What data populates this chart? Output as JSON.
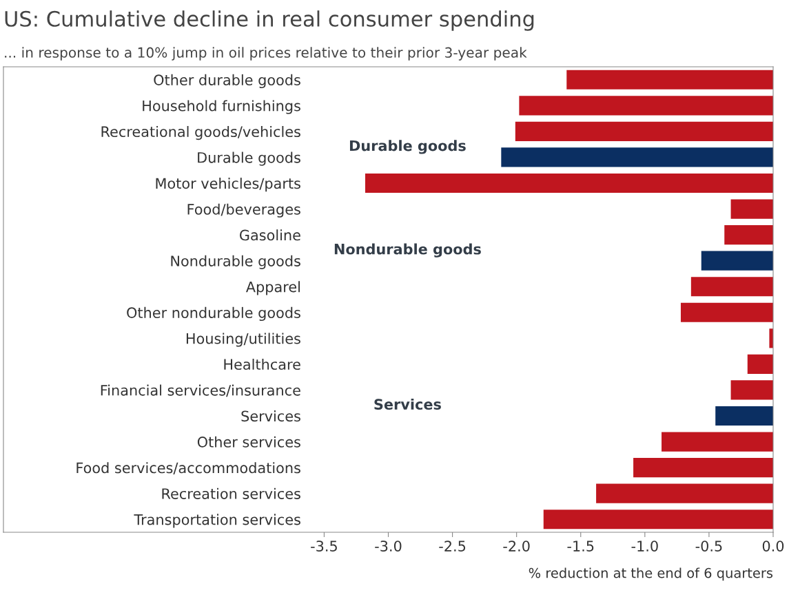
{
  "chart_data": {
    "type": "bar",
    "orientation": "horizontal",
    "title": "US: Cumulative decline in real consumer spending",
    "subtitle": "... in response to a 10% jump in oil prices relative to their prior 3-year peak",
    "xlabel": "% reduction at the end of 6 quarters",
    "categories": [
      "Other durable goods",
      "Household furnishings",
      "Recreational goods/vehicles",
      "Durable goods",
      "Motor vehicles/parts",
      "Food/beverages",
      "Gasoline",
      "Nondurable goods",
      "Apparel",
      "Other nondurable goods",
      "Housing/utilities",
      "Healthcare",
      "Financial services/insurance",
      "Services",
      "Other services",
      "Food services/accommodations",
      "Recreation services",
      "Transportation services"
    ],
    "values": [
      -1.61,
      -1.98,
      -2.01,
      -2.12,
      -3.18,
      -0.33,
      -0.38,
      -0.56,
      -0.64,
      -0.72,
      -0.03,
      -0.2,
      -0.33,
      -0.45,
      -0.87,
      -1.09,
      -1.38,
      -1.79
    ],
    "colors": [
      "#c0161f",
      "#c0161f",
      "#c0161f",
      "#0b2f62",
      "#c0161f",
      "#c0161f",
      "#c0161f",
      "#0b2f62",
      "#c0161f",
      "#c0161f",
      "#c0161f",
      "#c0161f",
      "#c0161f",
      "#0b2f62",
      "#c0161f",
      "#c0161f",
      "#c0161f",
      "#c0161f"
    ],
    "annotations": [
      "Durable goods",
      "Nondurable goods",
      "Services"
    ],
    "xlim": [
      -6.0,
      0.0
    ],
    "xticks": [
      {
        "value": -3.5,
        "label": "-3.5"
      },
      {
        "value": -3.0,
        "label": "-3.0"
      },
      {
        "value": -2.5,
        "label": "-2.5"
      },
      {
        "value": -2.0,
        "label": "-2.0"
      },
      {
        "value": -1.5,
        "label": "-1.5"
      },
      {
        "value": -1.0,
        "label": "-1.0"
      },
      {
        "value": -0.5,
        "label": "-0.5"
      },
      {
        "value": 0.0,
        "label": "0.0"
      }
    ],
    "grid": false,
    "legend": false
  }
}
